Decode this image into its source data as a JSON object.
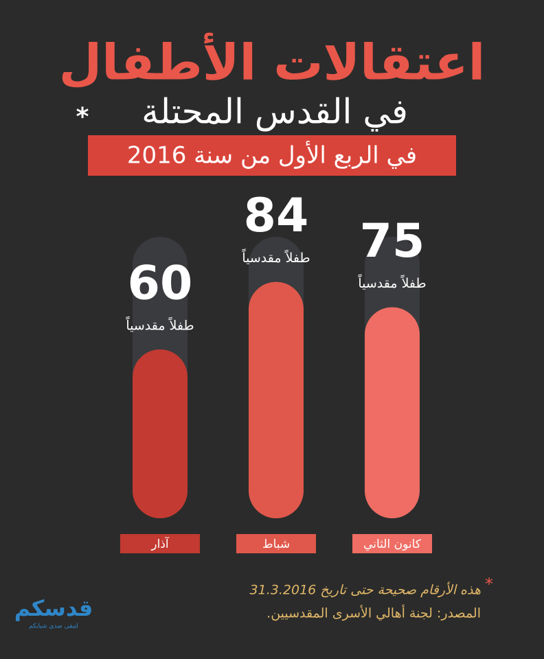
{
  "chart_data": {
    "type": "bar",
    "title": "اعتقالات الأطفال",
    "subtitle": "في القدس المحتلة",
    "subtitle_marker": "*",
    "banner": "في الربع الأول من سنة 2016",
    "categories": [
      "كانون الثاني",
      "شباط",
      "آذار"
    ],
    "values": [
      75,
      84,
      60
    ],
    "value_unit": "طفلاً مقدسياً",
    "colors": [
      "#ef6d64",
      "#e0584b",
      "#c23a31"
    ],
    "ylim": [
      0,
      100
    ],
    "footnote_marker": "*",
    "footnote": "هذه الأرقام صحيحة حتى تاريخ 31.3.2016",
    "source": "المصدر: لجنة أهالي الأسرى المقدسيين.",
    "logo": "قدسكم",
    "logo_tagline": "لتبقى صدى شبابكم"
  }
}
